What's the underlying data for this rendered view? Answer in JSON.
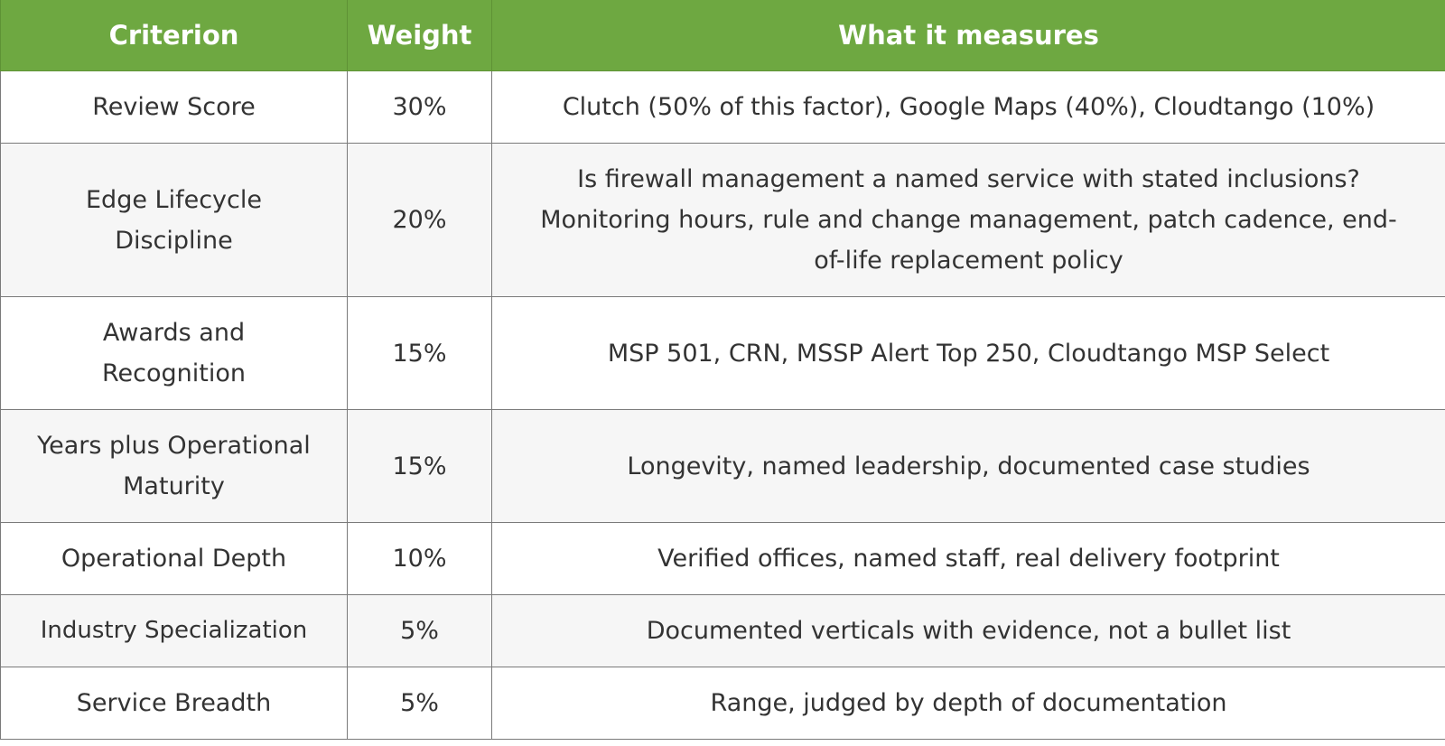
{
  "table": {
    "headers": [
      "Criterion",
      "Weight",
      "What it measures"
    ],
    "rows": [
      {
        "criterion": "Review Score",
        "weight": "30%",
        "measures": "Clutch (50% of this factor), Google Maps (40%), Cloudtango (10%)"
      },
      {
        "criterion": "Edge Lifecycle Discipline",
        "weight": "20%",
        "measures": "Is firewall management a named service with stated inclusions? Monitoring hours, rule and change management, patch cadence, end-of-life replacement policy"
      },
      {
        "criterion": "Awards and Recognition",
        "weight": "15%",
        "measures": "MSP 501, CRN, MSSP Alert Top 250, Cloudtango MSP Select"
      },
      {
        "criterion": "Years plus Operational Maturity",
        "weight": "15%",
        "measures": "Longevity, named leadership, documented case studies"
      },
      {
        "criterion": "Operational Depth",
        "weight": "10%",
        "measures": "Verified offices, named staff, real delivery footprint"
      },
      {
        "criterion": "Industry Specialization",
        "weight": "5%",
        "measures": "Documented verticals with evidence, not a bullet list"
      },
      {
        "criterion": "Service Breadth",
        "weight": "5%",
        "measures": "Range, judged by depth of documentation"
      }
    ]
  },
  "colors": {
    "header_bg": "#6ea841",
    "header_text": "#ffffff",
    "row_alt_bg": "#f6f6f6",
    "border": "#7a7a7a",
    "body_text": "#333333"
  }
}
